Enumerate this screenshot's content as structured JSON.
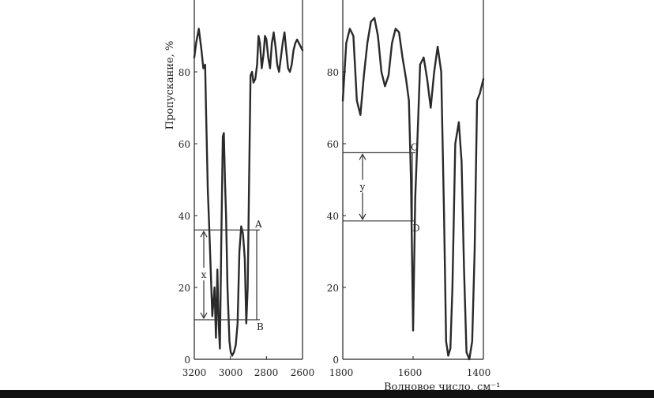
{
  "chart_data": [
    {
      "type": "line",
      "ylabel": "Пропускание, %",
      "xlim": [
        3200,
        2600
      ],
      "ylim": [
        0,
        100
      ],
      "xticks": [
        "3200",
        "3000",
        "2800",
        "2600"
      ],
      "yticks": [
        "0",
        "20",
        "40",
        "60",
        "80"
      ],
      "grid": false,
      "x": [
        3200,
        3190,
        3175,
        3160,
        3150,
        3140,
        3135,
        3125,
        3118,
        3110,
        3100,
        3088,
        3080,
        3072,
        3065,
        3058,
        3050,
        3042,
        3036,
        3030,
        3024,
        3016,
        3005,
        2998,
        2990,
        2980,
        2970,
        2960,
        2950,
        2940,
        2930,
        2920,
        2912,
        2904,
        2896,
        2888,
        2880,
        2872,
        2862,
        2852,
        2844,
        2836,
        2826,
        2816,
        2808,
        2800,
        2790,
        2780,
        2770,
        2760,
        2750,
        2740,
        2730,
        2720,
        2710,
        2700,
        2690,
        2680,
        2670,
        2660,
        2650,
        2640,
        2630,
        2620,
        2610,
        2600
      ],
      "y": [
        84,
        88,
        92,
        86,
        81,
        82,
        70,
        47,
        38,
        26,
        12,
        20,
        6,
        25,
        10,
        3,
        35,
        62,
        63,
        50,
        40,
        20,
        5,
        2,
        1,
        2,
        4,
        10,
        30,
        37,
        35,
        28,
        10,
        20,
        50,
        79,
        80,
        77,
        78,
        82,
        90,
        88,
        81,
        85,
        90,
        89,
        84,
        81,
        88,
        91,
        87,
        82,
        80,
        84,
        88,
        91,
        86,
        81,
        80,
        82,
        86,
        88,
        89,
        88,
        87,
        86
      ],
      "annotations": [
        "A",
        "B",
        "x"
      ],
      "reference_levels": [
        {
          "label": "A",
          "y": 36
        },
        {
          "label": "B",
          "y": 11
        }
      ]
    },
    {
      "type": "line",
      "xlabel": "Волновое число, см⁻¹",
      "xlim": [
        1800,
        1400
      ],
      "ylim": [
        0,
        100
      ],
      "xticks": [
        "1800",
        "1600",
        "1400"
      ],
      "yticks": [
        "0",
        "20",
        "40",
        "60",
        "80"
      ],
      "grid": false,
      "x": [
        1800,
        1790,
        1780,
        1770,
        1760,
        1750,
        1740,
        1730,
        1720,
        1710,
        1700,
        1690,
        1680,
        1670,
        1660,
        1650,
        1640,
        1630,
        1620,
        1612,
        1606,
        1600,
        1594,
        1588,
        1580,
        1570,
        1560,
        1550,
        1540,
        1530,
        1520,
        1512,
        1506,
        1500,
        1494,
        1488,
        1480,
        1470,
        1462,
        1455,
        1448,
        1440,
        1432,
        1425,
        1418,
        1410,
        1400
      ],
      "y": [
        72,
        88,
        92,
        90,
        72,
        68,
        79,
        88,
        94,
        95,
        90,
        80,
        76,
        79,
        88,
        92,
        91,
        84,
        78,
        72,
        50,
        8,
        45,
        60,
        82,
        84,
        78,
        70,
        80,
        87,
        80,
        40,
        5,
        1,
        3,
        20,
        60,
        66,
        55,
        25,
        2,
        0,
        5,
        30,
        72,
        74,
        78
      ],
      "annotations": [
        "C",
        "D",
        "y"
      ],
      "reference_levels": [
        {
          "label": "C",
          "y": 57.5
        },
        {
          "label": "D",
          "y": 38.5
        }
      ]
    }
  ]
}
